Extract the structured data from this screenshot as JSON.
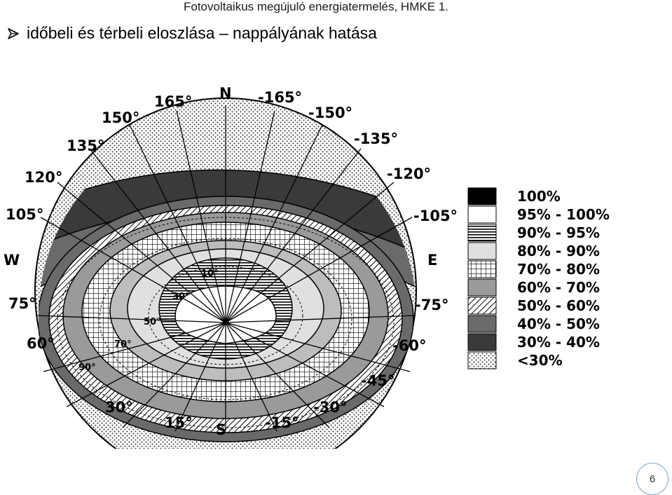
{
  "header": {
    "title": "Fotovoltaikus megújuló energiatermelés, HMKE 1."
  },
  "bullet": {
    "icon": "arrow-bullet-icon",
    "text": "időbeli és térbeli eloszlása – nappályának hatása"
  },
  "diagram": {
    "compass": {
      "north": "N",
      "south": "S",
      "west": "W",
      "east": "E"
    },
    "azimuth_labels_left": [
      "165°",
      "150°",
      "135°",
      "120°",
      "105°",
      "75°",
      "60°",
      "30°",
      "15°"
    ],
    "azimuth_labels_right": [
      "-165°",
      "-150°",
      "-135°",
      "-120°",
      "-105°",
      "-75°",
      "-60°",
      "-45°",
      "-30°",
      "-15°"
    ],
    "tilt_labels": [
      "10°",
      "30°",
      "50°",
      "70°",
      "90°"
    ],
    "legend": [
      {
        "label": "100%",
        "pattern": "black"
      },
      {
        "label": "95% - 100%",
        "pattern": "white"
      },
      {
        "label": "90% - 95%",
        "pattern": "hlines"
      },
      {
        "label": "80% - 90%",
        "pattern": "lightgray"
      },
      {
        "label": "70% - 80%",
        "pattern": "grid"
      },
      {
        "label": "60% - 70%",
        "pattern": "gray"
      },
      {
        "label": "50% - 60%",
        "pattern": "diagonal"
      },
      {
        "label": "40% - 50%",
        "pattern": "darkgray"
      },
      {
        "label": "30% - 40%",
        "pattern": "darker"
      },
      {
        "label": "<30%",
        "pattern": "dots"
      }
    ]
  },
  "page": {
    "number": "6"
  }
}
